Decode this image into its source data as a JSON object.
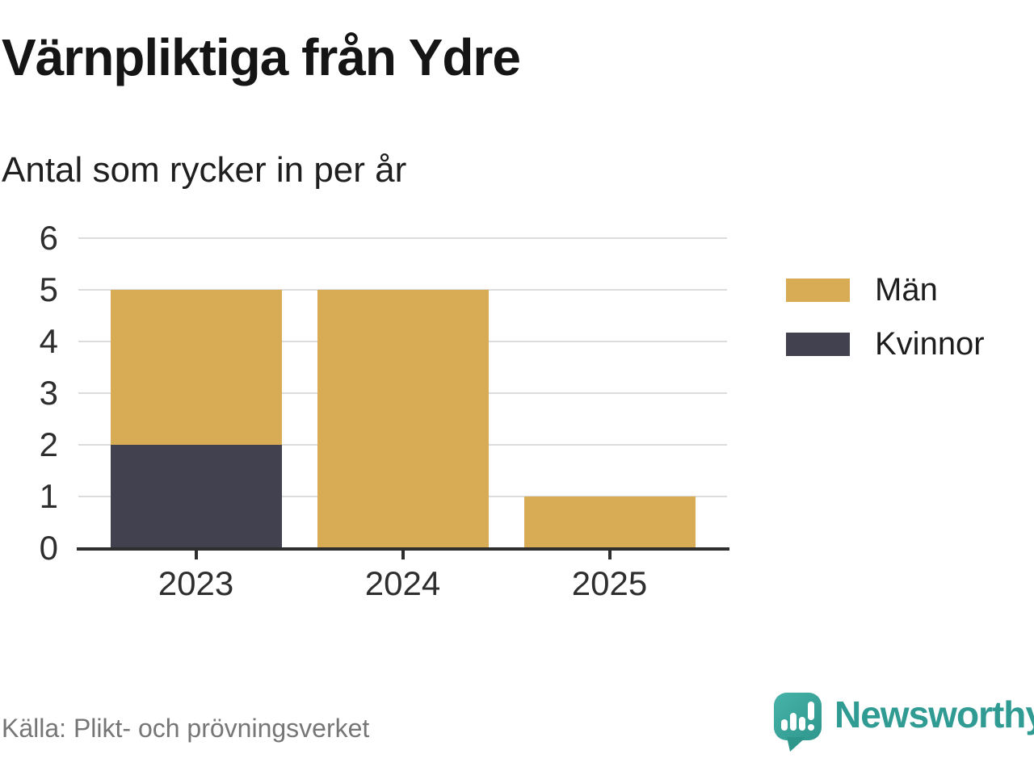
{
  "title": "Värnpliktiga från Ydre",
  "subtitle": "Antal som rycker in per år",
  "source": "Källa: Plikt- och prövningsverket",
  "branding": {
    "logo_text": "Newsworthy",
    "logo_icon": "newsworthy-speech-bubble-chart-icon",
    "brand_color": "#2f9b93"
  },
  "legend": {
    "items": [
      {
        "label": "Män",
        "color": "#d8ab55"
      },
      {
        "label": "Kvinnor",
        "color": "#41414f"
      }
    ]
  },
  "colors": {
    "men": "#d8ab55",
    "women": "#41414f",
    "gridline": "#dcdcdc",
    "axis": "#2e2e2e",
    "source_text": "#767676"
  },
  "chart_data": {
    "type": "bar",
    "stacked": true,
    "title": "Värnpliktiga från Ydre",
    "subtitle": "Antal som rycker in per år",
    "categories": [
      "2023",
      "2024",
      "2025"
    ],
    "series": [
      {
        "name": "Män",
        "color": "#d8ab55",
        "values": [
          3,
          5,
          1
        ]
      },
      {
        "name": "Kvinnor",
        "color": "#41414f",
        "values": [
          2,
          0,
          0
        ]
      }
    ],
    "totals": [
      5,
      5,
      1
    ],
    "xlabel": "",
    "ylabel": "",
    "ylim": [
      0,
      6
    ],
    "yticks": [
      0,
      1,
      2,
      3,
      4,
      5,
      6
    ],
    "grid": true,
    "legend_position": "right",
    "stack_order_bottom_to_top": [
      "Kvinnor",
      "Män"
    ]
  }
}
